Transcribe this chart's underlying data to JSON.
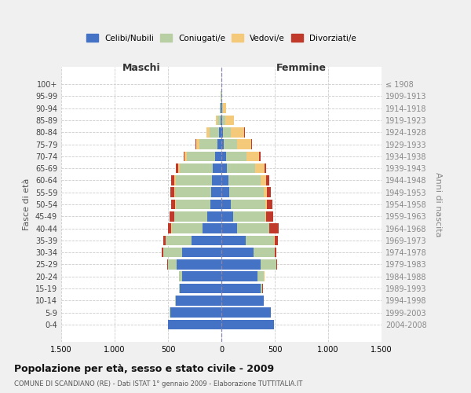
{
  "age_groups": [
    "0-4",
    "5-9",
    "10-14",
    "15-19",
    "20-24",
    "25-29",
    "30-34",
    "35-39",
    "40-44",
    "45-49",
    "50-54",
    "55-59",
    "60-64",
    "65-69",
    "70-74",
    "75-79",
    "80-84",
    "85-89",
    "90-94",
    "95-99",
    "100+"
  ],
  "birth_years": [
    "2004-2008",
    "1999-2003",
    "1994-1998",
    "1989-1993",
    "1984-1988",
    "1979-1983",
    "1974-1978",
    "1969-1973",
    "1964-1968",
    "1959-1963",
    "1954-1958",
    "1949-1953",
    "1944-1948",
    "1939-1943",
    "1934-1938",
    "1929-1933",
    "1924-1928",
    "1919-1923",
    "1914-1918",
    "1909-1913",
    "≤ 1908"
  ],
  "males": {
    "celibi": [
      500,
      480,
      430,
      390,
      370,
      420,
      370,
      280,
      175,
      130,
      100,
      95,
      90,
      80,
      60,
      35,
      20,
      8,
      5,
      2,
      2
    ],
    "coniugati": [
      3,
      2,
      3,
      5,
      25,
      80,
      175,
      240,
      290,
      310,
      330,
      340,
      340,
      310,
      260,
      170,
      90,
      30,
      10,
      2,
      0
    ],
    "vedovi": [
      0,
      0,
      0,
      0,
      2,
      2,
      2,
      2,
      3,
      3,
      5,
      5,
      10,
      15,
      25,
      30,
      30,
      15,
      3,
      0,
      0
    ],
    "divorziati": [
      0,
      0,
      0,
      2,
      3,
      5,
      15,
      25,
      35,
      45,
      35,
      35,
      30,
      20,
      10,
      5,
      3,
      0,
      0,
      0,
      0
    ]
  },
  "females": {
    "nubili": [
      490,
      460,
      395,
      370,
      340,
      370,
      300,
      230,
      150,
      110,
      90,
      75,
      65,
      55,
      45,
      25,
      15,
      8,
      8,
      3,
      2
    ],
    "coniugate": [
      3,
      3,
      5,
      15,
      60,
      145,
      200,
      265,
      295,
      300,
      320,
      320,
      300,
      260,
      190,
      120,
      70,
      30,
      10,
      3,
      0
    ],
    "vedove": [
      0,
      0,
      0,
      0,
      2,
      2,
      2,
      3,
      5,
      10,
      20,
      30,
      55,
      90,
      120,
      135,
      130,
      80,
      25,
      5,
      0
    ],
    "divorziate": [
      0,
      0,
      0,
      2,
      3,
      5,
      15,
      30,
      90,
      65,
      45,
      40,
      25,
      15,
      10,
      8,
      5,
      3,
      2,
      0,
      0
    ]
  },
  "colors": {
    "celibi_nubili": "#4472C4",
    "coniugati": "#B8CFA4",
    "vedovi": "#F5C97A",
    "divorziati": "#C0392B"
  },
  "title": "Popolazione per età, sesso e stato civile - 2009",
  "subtitle": "COMUNE DI SCANDIANO (RE) - Dati ISTAT 1° gennaio 2009 - Elaborazione TUTTITALIA.IT",
  "xlabel_left": "Maschi",
  "xlabel_right": "Femmine",
  "ylabel_left": "Fasce di età",
  "ylabel_right": "Anni di nascita",
  "legend_labels": [
    "Celibi/Nubili",
    "Coniugati/e",
    "Vedovi/e",
    "Divorziati/e"
  ],
  "bg_color": "#f0f0f0",
  "plot_bg_color": "#ffffff"
}
